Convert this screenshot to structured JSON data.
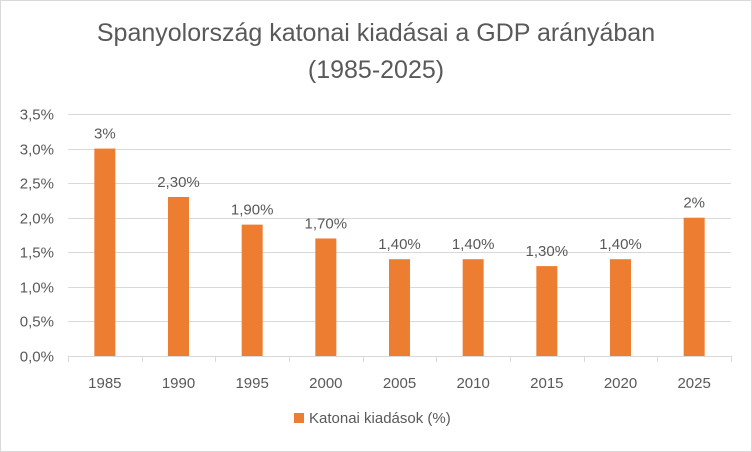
{
  "chart_data": {
    "type": "bar",
    "title": "Spanyolország katonai kiadásai a GDP arányában\n(1985-2025)",
    "xlabel": "",
    "ylabel": "",
    "categories": [
      "1985",
      "1990",
      "1995",
      "2000",
      "2005",
      "2010",
      "2015",
      "2020",
      "2025"
    ],
    "series": [
      {
        "name": "Katonai kiadások (%)",
        "values": [
          3.0,
          2.3,
          1.9,
          1.7,
          1.4,
          1.4,
          1.3,
          1.4,
          2.0
        ],
        "data_labels": [
          "3%",
          "2,30%",
          "1,90%",
          "1,70%",
          "1,40%",
          "1,40%",
          "1,30%",
          "1,40%",
          "2%"
        ],
        "color": "#ED7D31"
      }
    ],
    "ylim": [
      0,
      3.5
    ],
    "y_ticks": [
      0,
      0.5,
      1.0,
      1.5,
      2.0,
      2.5,
      3.0,
      3.5
    ],
    "y_tick_labels": [
      "0,0%",
      "0,5%",
      "1,0%",
      "1,5%",
      "2,0%",
      "2,5%",
      "3,0%",
      "3,5%"
    ],
    "grid": true,
    "legend_position": "bottom"
  },
  "colors": {
    "bar": "#ED7D31",
    "grid": "#d9d9d9",
    "text": "#595959"
  }
}
